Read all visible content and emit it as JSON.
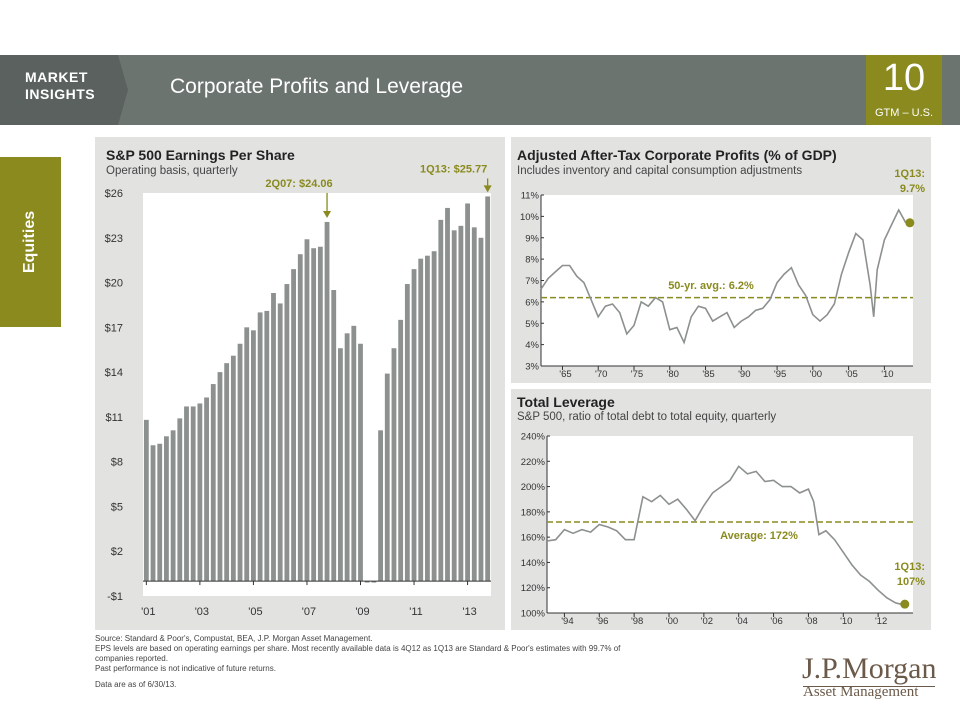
{
  "header": {
    "market_insights": "MARKET INSIGHTS",
    "title": "Corporate Profits and Leverage",
    "page_number": "10",
    "page_sub": "GTM – U.S."
  },
  "side_tab": {
    "label": "Equities"
  },
  "colors": {
    "olive": "#8a8a1e",
    "header_gray": "#6c7470",
    "bar_gray": "#8c918f",
    "panel_bg": "#e2e3e1",
    "line_gray": "#8c918f"
  },
  "chart_data": [
    {
      "type": "bar",
      "title": "S&P 500 Earnings Per Share",
      "subtitle": "Operating basis, quarterly",
      "ylim": [
        -1,
        26
      ],
      "yticks": [
        "$26",
        "$23",
        "$20",
        "$17",
        "$14",
        "$11",
        "$8",
        "$5",
        "$2",
        "-$1"
      ],
      "ytick_values": [
        26,
        23,
        20,
        17,
        14,
        11,
        8,
        5,
        2,
        -1
      ],
      "xtick_labels": [
        "'01",
        "'03",
        "'05",
        "'07",
        "'09",
        "'11",
        "'13"
      ],
      "x_start_year": 2001,
      "values": [
        10.8,
        9.1,
        9.2,
        9.7,
        10.1,
        10.9,
        11.7,
        11.7,
        11.9,
        12.3,
        13.2,
        14.0,
        14.6,
        15.1,
        15.9,
        17.0,
        16.8,
        18.0,
        18.1,
        19.3,
        18.6,
        19.9,
        20.9,
        21.9,
        22.9,
        22.3,
        22.4,
        24.06,
        19.5,
        15.6,
        16.6,
        17.1,
        15.9,
        -0.1,
        -0.1,
        10.1,
        13.9,
        15.6,
        17.5,
        19.9,
        20.9,
        21.6,
        21.8,
        22.1,
        24.2,
        25.0,
        23.5,
        23.8,
        25.3,
        23.7,
        23.0,
        25.77
      ],
      "annotations": [
        {
          "label": "2Q07: $24.06",
          "value": 24.06
        },
        {
          "label": "1Q13: $25.77",
          "value": 25.77
        }
      ]
    },
    {
      "type": "line",
      "title": "Adjusted After-Tax Corporate Profits (% of GDP)",
      "subtitle": "Includes inventory and capital consumption adjustments",
      "ylim": [
        3,
        11
      ],
      "yticks": [
        "11%",
        "10%",
        "9%",
        "8%",
        "7%",
        "6%",
        "5%",
        "4%",
        "3%"
      ],
      "ytick_values": [
        11,
        10,
        9,
        8,
        7,
        6,
        5,
        4,
        3
      ],
      "xlim": [
        1962,
        2014
      ],
      "xtick_labels": [
        "'65",
        "'70",
        "'75",
        "'80",
        "'85",
        "'90",
        "'95",
        "'00",
        "'05",
        "'10"
      ],
      "xtick_values": [
        1965,
        1970,
        1975,
        1980,
        1985,
        1990,
        1995,
        2000,
        2005,
        2010
      ],
      "x": [
        1962,
        1963,
        1964,
        1965,
        1966,
        1967,
        1968,
        1969,
        1970,
        1971,
        1972,
        1973,
        1974,
        1975,
        1976,
        1977,
        1978,
        1979,
        1980,
        1981,
        1982,
        1983,
        1984,
        1985,
        1986,
        1987,
        1988,
        1989,
        1990,
        1991,
        1992,
        1993,
        1994,
        1995,
        1996,
        1997,
        1998,
        1999,
        2000,
        2001,
        2002,
        2003,
        2004,
        2005,
        2006,
        2007,
        2008,
        2008.5,
        2009,
        2010,
        2011,
        2012,
        2013
      ],
      "y": [
        6.6,
        7.1,
        7.4,
        7.7,
        7.7,
        7.2,
        6.9,
        6.1,
        5.3,
        5.8,
        5.9,
        5.5,
        4.5,
        4.9,
        6.0,
        5.8,
        6.2,
        6.0,
        4.7,
        4.8,
        4.1,
        5.3,
        5.8,
        5.7,
        5.1,
        5.3,
        5.5,
        4.8,
        5.1,
        5.3,
        5.6,
        5.7,
        6.1,
        6.9,
        7.3,
        7.6,
        6.8,
        6.3,
        5.4,
        5.1,
        5.4,
        5.9,
        7.3,
        8.3,
        9.2,
        8.9,
        6.8,
        5.3,
        7.5,
        8.9,
        9.6,
        10.3,
        9.7
      ],
      "average": {
        "label": "50-yr. avg.: 6.2%",
        "value": 6.2
      },
      "end_annotation": {
        "label_line1": "1Q13:",
        "label_line2": "9.7%",
        "value": 9.7
      }
    },
    {
      "type": "line",
      "title": "Total Leverage",
      "subtitle": "S&P 500, ratio of total debt to total equity, quarterly",
      "ylim": [
        100,
        240
      ],
      "yticks": [
        "240%",
        "220%",
        "200%",
        "180%",
        "160%",
        "140%",
        "120%",
        "100%"
      ],
      "ytick_values": [
        240,
        220,
        200,
        180,
        160,
        140,
        120,
        100
      ],
      "xlim": [
        1993,
        2014
      ],
      "xtick_labels": [
        "'94",
        "'96",
        "'98",
        "'00",
        "'02",
        "'04",
        "'06",
        "'08",
        "'10",
        "'12"
      ],
      "xtick_values": [
        1994,
        1996,
        1998,
        2000,
        2002,
        2004,
        2006,
        2008,
        2010,
        2012
      ],
      "x": [
        1993,
        1993.5,
        1994,
        1994.5,
        1995,
        1995.5,
        1996,
        1996.5,
        1997,
        1997.5,
        1998,
        1998.5,
        1999,
        1999.5,
        2000,
        2000.5,
        2001,
        2001.5,
        2002,
        2002.5,
        2003,
        2003.5,
        2004,
        2004.5,
        2005,
        2005.5,
        2006,
        2006.5,
        2007,
        2007.5,
        2008,
        2008.3,
        2008.6,
        2009,
        2009.5,
        2010,
        2010.5,
        2011,
        2011.5,
        2012,
        2012.5,
        2013,
        2013.3
      ],
      "y": [
        157,
        158,
        166,
        163,
        166,
        164,
        170,
        168,
        165,
        158,
        158,
        192,
        188,
        193,
        186,
        190,
        182,
        173,
        185,
        195,
        200,
        205,
        216,
        210,
        212,
        204,
        205,
        200,
        200,
        195,
        198,
        188,
        162,
        165,
        158,
        148,
        138,
        130,
        125,
        118,
        112,
        108,
        107
      ],
      "average": {
        "label": "Average: 172%",
        "value": 172
      },
      "end_annotation": {
        "label_line1": "1Q13:",
        "label_line2": "107%",
        "value": 107
      }
    }
  ],
  "footnotes": {
    "line1": "Source: Standard & Poor's, Compustat, BEA, J.P. Morgan Asset Management.",
    "line2": "EPS levels are based on operating earnings per share. Most recently available data is 4Q12 as 1Q13 are Standard & Poor's estimates with 99.7% of",
    "line3": "companies reported.",
    "line4": "Past performance is not indicative of future returns.",
    "line5": "Data are as of 6/30/13."
  },
  "logo": {
    "name": "J.P.Morgan",
    "sub": "Asset Management"
  }
}
